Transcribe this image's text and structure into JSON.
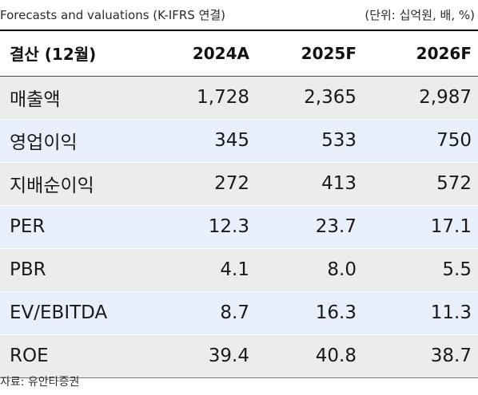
{
  "caption": {
    "title": "Forecasts and valuations (K-IFRS 연결)",
    "unit": "(단위: 십억원, 배, %)"
  },
  "table": {
    "headers": [
      "결산 (12월)",
      "2024A",
      "2025F",
      "2026F"
    ],
    "rows": [
      [
        "매출액",
        "1,728",
        "2,365",
        "2,987"
      ],
      [
        "영업이익",
        "345",
        "533",
        "750"
      ],
      [
        "지배순이익",
        "272",
        "413",
        "572"
      ],
      [
        "PER",
        "12.3",
        "23.7",
        "17.1"
      ],
      [
        "PBR",
        "4.1",
        "8.0",
        "5.5"
      ],
      [
        "EV/EBITDA",
        "8.7",
        "16.3",
        "11.3"
      ],
      [
        "ROE",
        "39.4",
        "40.8",
        "38.7"
      ]
    ]
  },
  "source": "자료: 유안타증권"
}
